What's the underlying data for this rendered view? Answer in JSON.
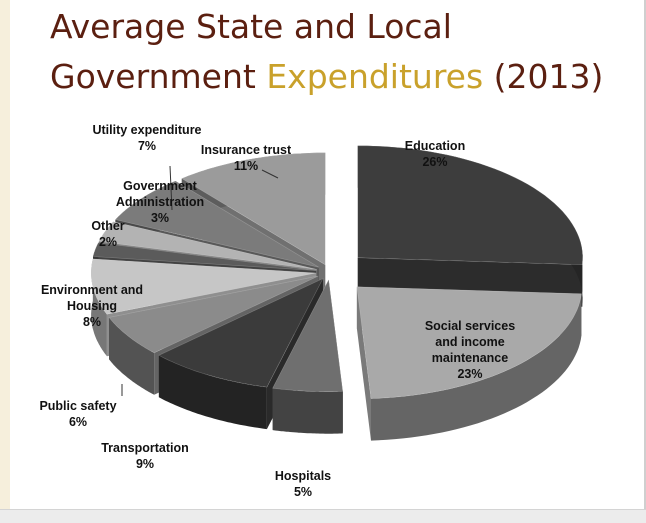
{
  "chart_data": {
    "type": "pie",
    "title": [
      "Average State and Local",
      "Government",
      "Expenditures",
      "(2013)"
    ],
    "title_colors": [
      "#5b1f10",
      "#5b1f10",
      "#c9a12b",
      "#5b1f10"
    ],
    "categories": [
      "Education",
      "Social services and income maintenance",
      "Hospitals",
      "Transportation",
      "Public safety",
      "Environment and Housing",
      "Other",
      "Government Administration",
      "Utility expenditure",
      "Insurance trust"
    ],
    "values": [
      26,
      23,
      5,
      9,
      6,
      8,
      2,
      3,
      7,
      11
    ],
    "value_labels": [
      "26%",
      "23%",
      "5%",
      "9%",
      "6%",
      "8%",
      "2%",
      "3%",
      "7%",
      "11%"
    ],
    "colors": [
      "#3d3d3d",
      "#a9a9a9",
      "#6f6f6f",
      "#3b3b3b",
      "#8b8b8b",
      "#c6c6c6",
      "#5b5b5b",
      "#b3b3b3",
      "#7b7b7b",
      "#9b9b9b"
    ]
  }
}
